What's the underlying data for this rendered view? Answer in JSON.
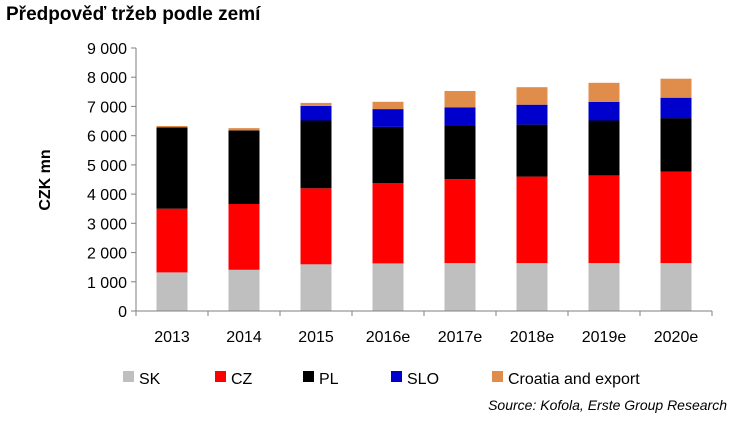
{
  "title": "Předpověď tržeb podle zemí",
  "source": "Source: Kofola, Erste Group Research",
  "colors": {
    "SK": "#bfbfbf",
    "CZ": "#ff0000",
    "PL": "#000000",
    "SLO": "#0000cc",
    "Croatia and export": "#e08c4b",
    "axis": "#7f7f7f"
  },
  "chart_data": {
    "type": "bar",
    "stacked": true,
    "title": "Předpověď tržeb podle zemí",
    "xlabel": "",
    "ylabel": "CZK mn",
    "ylim": [
      0,
      9000
    ],
    "yticks": [
      "0",
      "1 000",
      "2 000",
      "3 000",
      "4 000",
      "5 000",
      "6 000",
      "7 000",
      "8 000",
      "9 000"
    ],
    "ytick_values": [
      0,
      1000,
      2000,
      3000,
      4000,
      5000,
      6000,
      7000,
      8000,
      9000
    ],
    "categories": [
      "2013",
      "2014",
      "2015",
      "2016e",
      "2017e",
      "2018e",
      "2019e",
      "2020e"
    ],
    "grid": false,
    "legend_position": "bottom",
    "series": [
      {
        "name": "SK",
        "color": "#bfbfbf",
        "values": [
          1320,
          1410,
          1600,
          1630,
          1640,
          1640,
          1640,
          1640
        ]
      },
      {
        "name": "CZ",
        "color": "#ff0000",
        "values": [
          2180,
          2250,
          2600,
          2750,
          2870,
          2960,
          3000,
          3130
        ]
      },
      {
        "name": "PL",
        "color": "#000000",
        "values": [
          2780,
          2520,
          2320,
          1920,
          1820,
          1780,
          1880,
          1830
        ]
      },
      {
        "name": "SLO",
        "color": "#0000cc",
        "values": [
          0,
          0,
          500,
          610,
          640,
          680,
          640,
          700
        ]
      },
      {
        "name": "Croatia and export",
        "color": "#e08c4b",
        "values": [
          50,
          80,
          100,
          250,
          560,
          600,
          650,
          650
        ]
      }
    ]
  }
}
